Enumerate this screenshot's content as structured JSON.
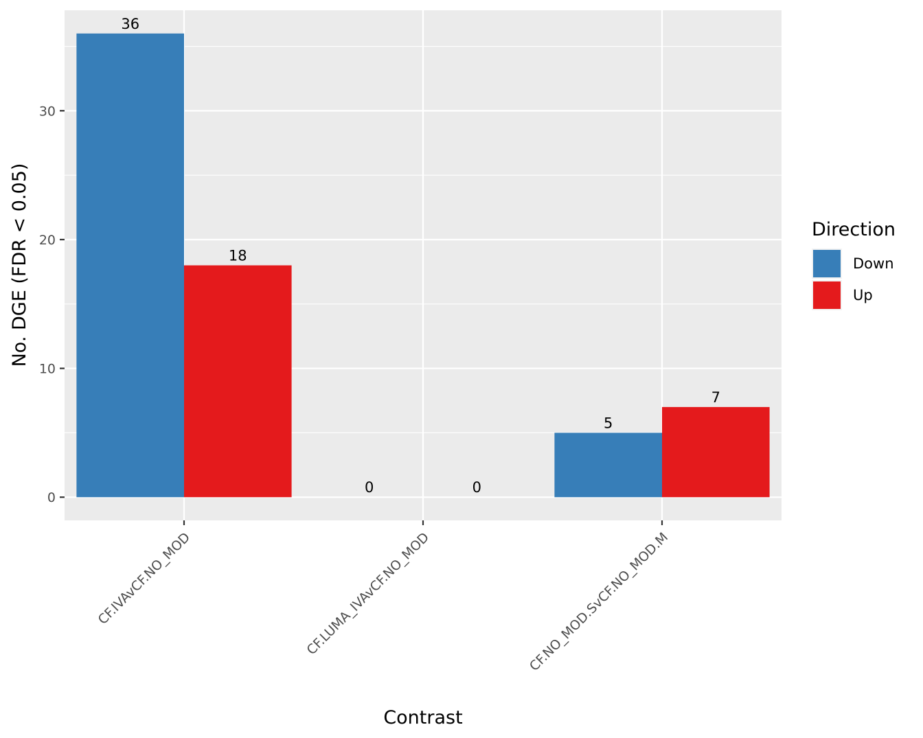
{
  "chart_data": {
    "type": "bar",
    "title": "",
    "xlabel": "Contrast",
    "ylabel": "No. DGE (FDR < 0.05)",
    "categories": [
      "CF.IVAvCF.NO_MOD",
      "CF.LUMA_IVAvCF.NO_MOD",
      "CF.NO_MOD.SvCF.NO_MOD.M"
    ],
    "series": [
      {
        "name": "Down",
        "color": "#377EB8",
        "values": [
          36,
          0,
          5
        ]
      },
      {
        "name": "Up",
        "color": "#E41A1C",
        "values": [
          18,
          0,
          7
        ]
      }
    ],
    "ylim": [
      -1.8,
      37.8
    ],
    "yticks": [
      0,
      10,
      20,
      30
    ],
    "grid": true,
    "panel_background": "#EBEBEB",
    "legend": {
      "title": "Direction",
      "position": "right"
    }
  }
}
